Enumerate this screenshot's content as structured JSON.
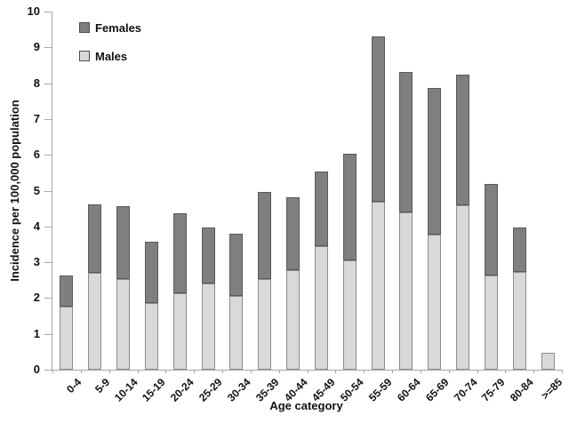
{
  "chart_data": {
    "type": "bar",
    "stacked": true,
    "title": "",
    "xlabel": "Age category",
    "ylabel": "Incidence  per 100,000 population",
    "ylim": [
      0,
      10
    ],
    "yticks": [
      0,
      1,
      2,
      3,
      4,
      5,
      6,
      7,
      8,
      9,
      10
    ],
    "gridlines": false,
    "legend_position": "top-left-inside",
    "axis_color": "#a6a6a6",
    "text_color": "#111111",
    "categories": [
      "0-4",
      "5-9",
      "10-14",
      "15-19",
      "20-24",
      "25-29",
      "30-34",
      "35-39",
      "40-44",
      "45-49",
      "50-54",
      "55-59",
      "60-64",
      "65-69",
      "70-74",
      "75-79",
      "80-84",
      ">=85"
    ],
    "series": [
      {
        "name": "Males",
        "color": "#d9d9d9",
        "border": "#8c8c8c",
        "values": [
          1.76,
          2.7,
          2.54,
          1.87,
          2.14,
          2.4,
          2.06,
          2.52,
          2.78,
          3.46,
          3.04,
          4.7,
          4.38,
          3.78,
          4.58,
          2.64,
          2.72,
          0.46
        ]
      },
      {
        "name": "Females",
        "color": "#7f7f7f",
        "border": "#595959",
        "values": [
          0.88,
          1.92,
          2.04,
          1.7,
          2.24,
          1.56,
          1.74,
          2.44,
          2.04,
          2.08,
          2.98,
          4.62,
          3.92,
          4.1,
          3.64,
          2.56,
          1.24,
          0.0
        ]
      }
    ]
  }
}
